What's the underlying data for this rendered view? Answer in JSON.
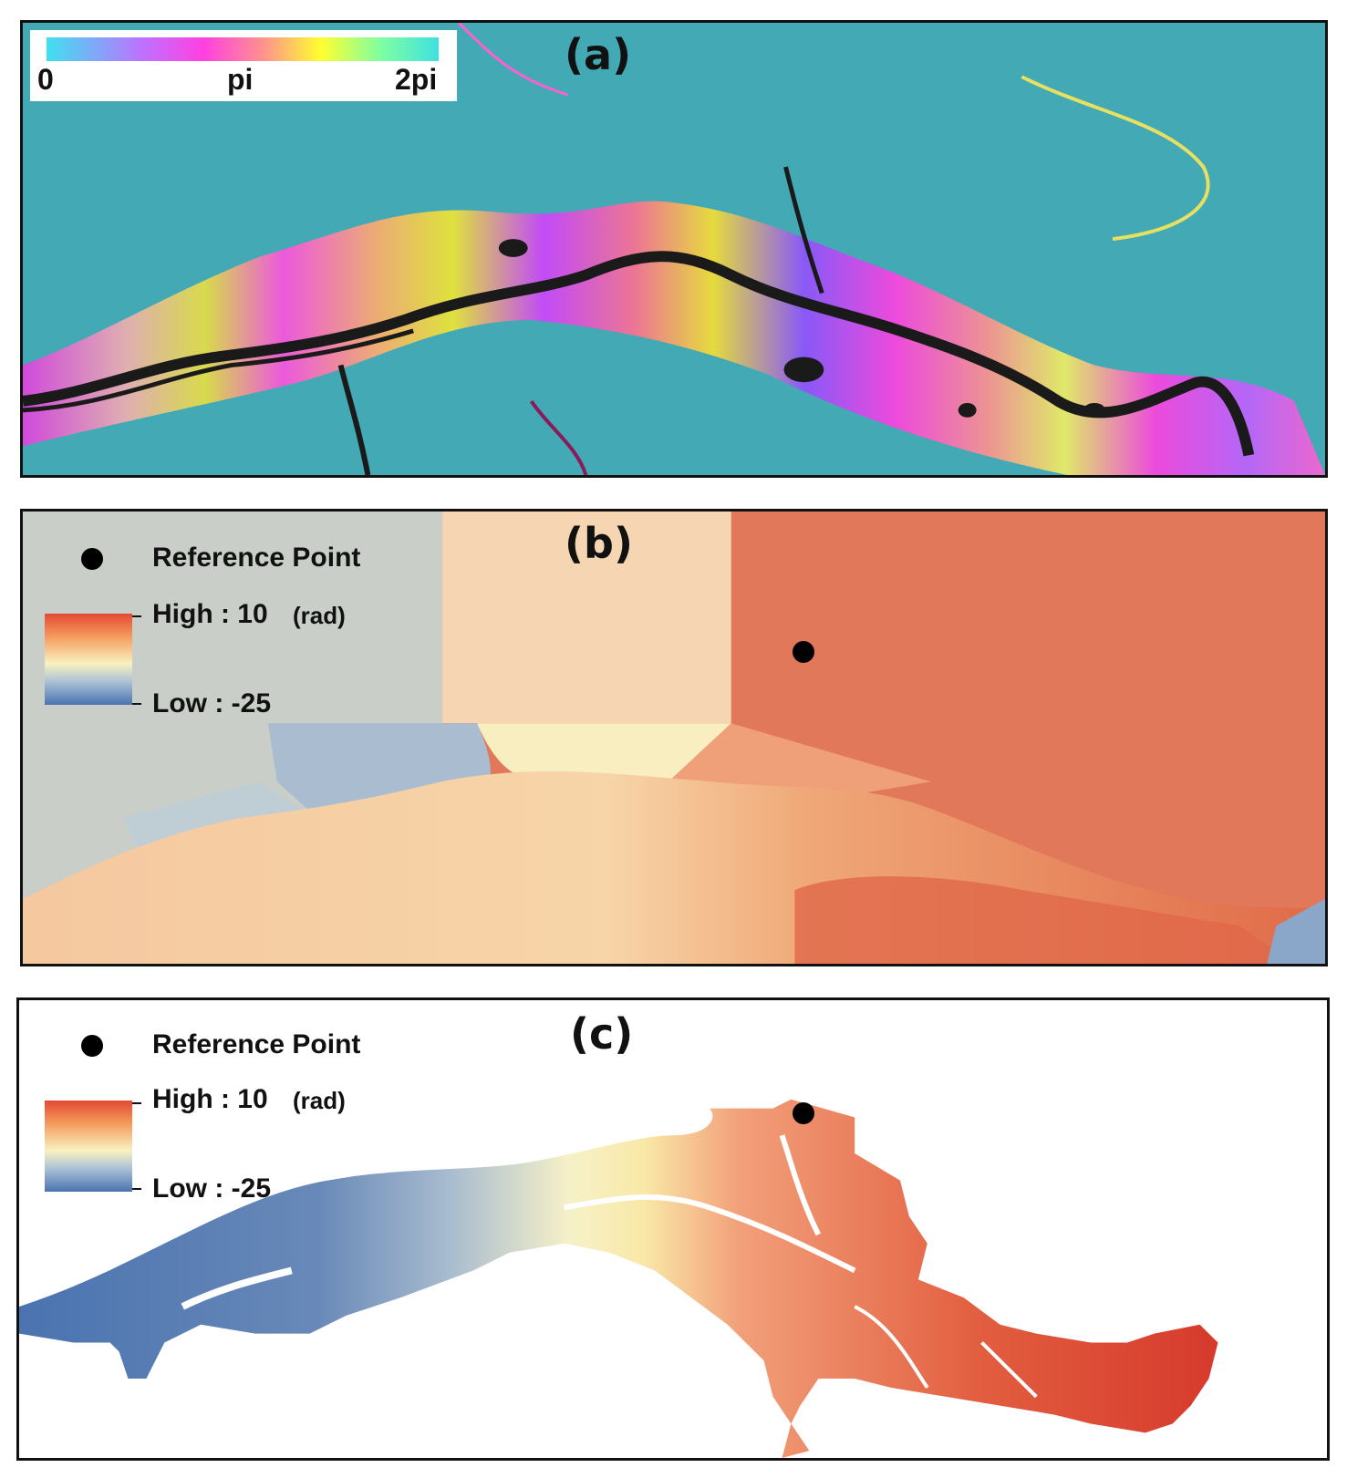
{
  "panels": {
    "a": {
      "label": "(a)",
      "colorbar": {
        "ticks": [
          "0",
          "pi",
          "2pi"
        ]
      }
    },
    "b": {
      "label": "(b)",
      "legend": {
        "reference": "Reference Point",
        "high": "High : 10",
        "unit": "(rad)",
        "low": "Low : -25"
      }
    },
    "c": {
      "label": "(c)",
      "legend": {
        "reference": "Reference Point",
        "high": "High : 10",
        "unit": "(rad)",
        "low": "Low : -25"
      }
    }
  },
  "colors": {
    "high": "#e24a33",
    "mid": "#f8f2c0",
    "low": "#4a73b0",
    "river": "#1a1a1a",
    "reference_point": "#000000"
  }
}
